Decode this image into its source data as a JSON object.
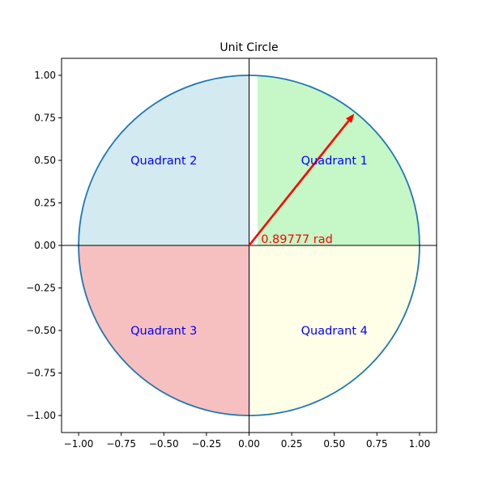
{
  "chart_data": {
    "type": "line",
    "title": "Unit Circle",
    "xlabel": "",
    "ylabel": "",
    "xlim": [
      -1.1,
      1.1
    ],
    "ylim": [
      -1.1,
      1.1
    ],
    "xticks": [
      -1.0,
      -0.75,
      -0.5,
      -0.25,
      0.0,
      0.25,
      0.5,
      0.75,
      1.0
    ],
    "yticks": [
      -1.0,
      -0.75,
      -0.5,
      -0.25,
      0.0,
      0.25,
      0.5,
      0.75,
      1.0
    ],
    "xtick_labels": [
      "−1.00",
      "−0.75",
      "−0.50",
      "−0.25",
      "0.00",
      "0.25",
      "0.50",
      "0.75",
      "1.00"
    ],
    "ytick_labels": [
      "−1.00",
      "−0.75",
      "−0.50",
      "−0.25",
      "0.00",
      "0.25",
      "0.50",
      "0.75",
      "1.00"
    ],
    "grid": false,
    "circle": {
      "center": [
        0,
        0
      ],
      "radius": 1.0,
      "color": "#1f77b4"
    },
    "quadrants": [
      {
        "label": "Quadrant 1",
        "label_pos": [
          0.5,
          0.5
        ],
        "color": "#c6f7c6",
        "theta_start_deg": 0,
        "theta_end_deg": 90,
        "inner_x_offset": 0.05
      },
      {
        "label": "Quadrant 2",
        "label_pos": [
          -0.5,
          0.5
        ],
        "color": "#d4eaf1",
        "theta_start_deg": 90,
        "theta_end_deg": 180,
        "inner_x_offset": 0
      },
      {
        "label": "Quadrant 3",
        "label_pos": [
          -0.5,
          -0.5
        ],
        "color": "#f7c0c0",
        "theta_start_deg": 180,
        "theta_end_deg": 270,
        "inner_x_offset": 0
      },
      {
        "label": "Quadrant 4",
        "label_pos": [
          0.5,
          -0.5
        ],
        "color": "#ffffe8",
        "theta_start_deg": 270,
        "theta_end_deg": 360,
        "inner_x_offset": 0
      }
    ],
    "quadrant_label_color": "#0000ff",
    "angle_vector": {
      "angle_rad": 0.89777,
      "length": 0.99,
      "color": "#ff0000"
    },
    "angle_label": {
      "text": "0.89777 rad",
      "pos": [
        0.07,
        0.02
      ],
      "color": "#ff0000"
    }
  }
}
